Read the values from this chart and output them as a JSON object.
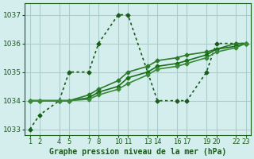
{
  "bg_color": "#d4eeed",
  "grid_color": "#aacccc",
  "line_color_dark": "#1a5c1a",
  "xlabel": "Graphe pression niveau de la mer (hPa)",
  "xlabel_color": "#1a5c1a",
  "ylim": [
    1032.8,
    1037.4
  ],
  "yticks": [
    1033,
    1034,
    1035,
    1036,
    1037
  ],
  "xtick_labels": [
    "1",
    "2",
    "4",
    "5",
    "7",
    "8",
    "10",
    "11",
    "13",
    "14",
    "16",
    "17",
    "19",
    "20",
    "22",
    "23"
  ],
  "xtick_positions": [
    1,
    2,
    4,
    5,
    7,
    8,
    10,
    11,
    13,
    14,
    16,
    17,
    19,
    20,
    22,
    23
  ],
  "xlim": [
    0.5,
    23.5
  ],
  "lines": [
    {
      "x": [
        1,
        2,
        4,
        5,
        7,
        8,
        10,
        11,
        13,
        14,
        16,
        17,
        19,
        20,
        22,
        23
      ],
      "y": [
        1033.0,
        1033.5,
        1034.0,
        1035.0,
        1035.0,
        1036.0,
        1037.0,
        1037.0,
        1035.0,
        1034.0,
        1034.0,
        1034.0,
        1035.0,
        1036.0,
        1036.0,
        1036.0
      ],
      "style": "dotted",
      "marker": "D",
      "markersize": 2.5,
      "linewidth": 1.2,
      "color": "#1a5c1a"
    },
    {
      "x": [
        1,
        2,
        4,
        5,
        7,
        8,
        10,
        11,
        13,
        14,
        16,
        17,
        19,
        20,
        22,
        23
      ],
      "y": [
        1034.0,
        1034.0,
        1034.0,
        1034.0,
        1034.2,
        1034.4,
        1034.7,
        1035.0,
        1035.2,
        1035.4,
        1035.5,
        1035.6,
        1035.7,
        1035.8,
        1036.0,
        1036.0
      ],
      "style": "solid",
      "marker": "D",
      "markersize": 2.5,
      "linewidth": 1.2,
      "color": "#2a7a2a"
    },
    {
      "x": [
        1,
        2,
        4,
        5,
        7,
        8,
        10,
        11,
        13,
        14,
        16,
        17,
        19,
        20,
        22,
        23
      ],
      "y": [
        1034.0,
        1034.0,
        1034.0,
        1034.0,
        1034.1,
        1034.3,
        1034.5,
        1034.8,
        1035.0,
        1035.2,
        1035.3,
        1035.4,
        1035.6,
        1035.8,
        1035.9,
        1036.0
      ],
      "style": "solid",
      "marker": "D",
      "markersize": 2.5,
      "linewidth": 1.2,
      "color": "#1a6e1a"
    },
    {
      "x": [
        1,
        2,
        4,
        5,
        7,
        8,
        10,
        11,
        13,
        14,
        16,
        17,
        19,
        20,
        22,
        23
      ],
      "y": [
        1034.0,
        1034.0,
        1034.0,
        1034.0,
        1034.05,
        1034.2,
        1034.4,
        1034.6,
        1034.9,
        1035.1,
        1035.2,
        1035.3,
        1035.5,
        1035.7,
        1035.85,
        1036.0
      ],
      "style": "solid",
      "marker": "D",
      "markersize": 2.5,
      "linewidth": 1.2,
      "color": "#3a8a3a"
    }
  ]
}
